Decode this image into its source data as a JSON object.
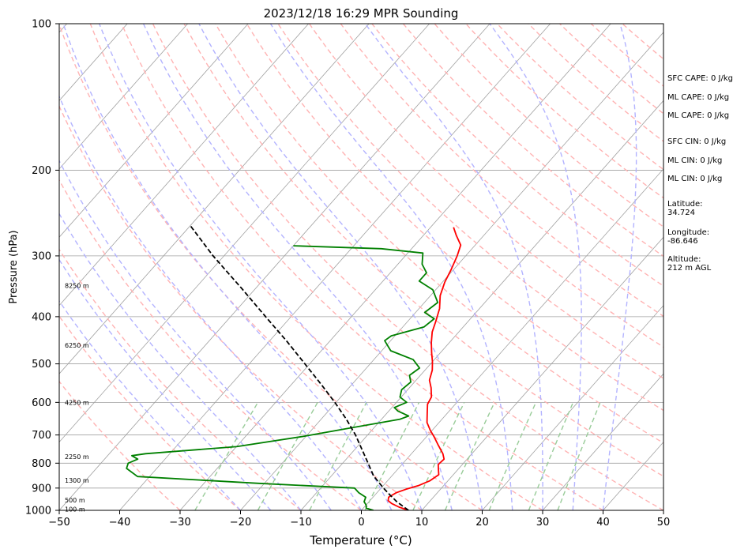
{
  "chart_data": {
    "type": "skew-t",
    "title": "2023/12/18 16:29 MPR Sounding",
    "xlabel": "Temperature (°C)",
    "ylabel": "Pressure (hPa)",
    "xlim": [
      -50,
      50
    ],
    "ylim_hpa": [
      1000,
      100
    ],
    "x_ticks": [
      -50,
      -40,
      -30,
      -20,
      -10,
      0,
      10,
      20,
      30,
      40,
      50
    ],
    "y_ticks": [
      100,
      200,
      300,
      400,
      500,
      600,
      700,
      800,
      900,
      1000
    ],
    "height_labels": [
      {
        "text": "8250 m",
        "p": 345
      },
      {
        "text": "6250 m",
        "p": 458
      },
      {
        "text": "4250 m",
        "p": 600
      },
      {
        "text": "2250 m",
        "p": 776
      },
      {
        "text": "1300 m",
        "p": 868
      },
      {
        "text": "500 m",
        "p": 953
      },
      {
        "text": "100 m",
        "p": 995
      }
    ],
    "series": [
      {
        "role": "temperature",
        "color": "#ff0000",
        "points": [
          {
            "p": 1000,
            "t": 7.8
          },
          {
            "p": 985,
            "t": 5.8
          },
          {
            "p": 968,
            "t": 4.0
          },
          {
            "p": 955,
            "t": 3.0
          },
          {
            "p": 940,
            "t": 2.6
          },
          {
            "p": 920,
            "t": 3.2
          },
          {
            "p": 905,
            "t": 4.3
          },
          {
            "p": 890,
            "t": 5.8
          },
          {
            "p": 870,
            "t": 7.0
          },
          {
            "p": 845,
            "t": 7.6
          },
          {
            "p": 825,
            "t": 6.8
          },
          {
            "p": 805,
            "t": 6.0
          },
          {
            "p": 785,
            "t": 6.2
          },
          {
            "p": 765,
            "t": 5.2
          },
          {
            "p": 735,
            "t": 3.2
          },
          {
            "p": 705,
            "t": 1.2
          },
          {
            "p": 685,
            "t": -0.3
          },
          {
            "p": 660,
            "t": -2.0
          },
          {
            "p": 630,
            "t": -3.4
          },
          {
            "p": 605,
            "t": -4.6
          },
          {
            "p": 585,
            "t": -5.0
          },
          {
            "p": 560,
            "t": -6.4
          },
          {
            "p": 540,
            "t": -7.8
          },
          {
            "p": 515,
            "t": -8.8
          },
          {
            "p": 495,
            "t": -10.0
          },
          {
            "p": 475,
            "t": -11.4
          },
          {
            "p": 452,
            "t": -13.0
          },
          {
            "p": 430,
            "t": -14.4
          },
          {
            "p": 410,
            "t": -15.3
          },
          {
            "p": 385,
            "t": -16.6
          },
          {
            "p": 362,
            "t": -18.4
          },
          {
            "p": 340,
            "t": -19.6
          },
          {
            "p": 320,
            "t": -20.4
          },
          {
            "p": 300,
            "t": -21.4
          },
          {
            "p": 285,
            "t": -22.4
          },
          {
            "p": 272,
            "t": -24.6
          },
          {
            "p": 262,
            "t": -26.2
          }
        ]
      },
      {
        "role": "dewpoint",
        "color": "#008000",
        "points": [
          {
            "p": 1000,
            "t": 2.0
          },
          {
            "p": 990,
            "t": 0.5
          },
          {
            "p": 975,
            "t": 0.0
          },
          {
            "p": 960,
            "t": -0.8
          },
          {
            "p": 940,
            "t": -1.2
          },
          {
            "p": 920,
            "t": -3.0
          },
          {
            "p": 900,
            "t": -4.4
          },
          {
            "p": 880,
            "t": -21.0
          },
          {
            "p": 852,
            "t": -42.0
          },
          {
            "p": 820,
            "t": -45.0
          },
          {
            "p": 800,
            "t": -45.5
          },
          {
            "p": 785,
            "t": -44.5
          },
          {
            "p": 772,
            "t": -46.0
          },
          {
            "p": 765,
            "t": -44.0
          },
          {
            "p": 740,
            "t": -30.0
          },
          {
            "p": 705,
            "t": -20.5
          },
          {
            "p": 680,
            "t": -14.5
          },
          {
            "p": 650,
            "t": -7.0
          },
          {
            "p": 640,
            "t": -6.0
          },
          {
            "p": 625,
            "t": -8.5
          },
          {
            "p": 615,
            "t": -9.6
          },
          {
            "p": 600,
            "t": -8.3
          },
          {
            "p": 585,
            "t": -10.2
          },
          {
            "p": 565,
            "t": -11.0
          },
          {
            "p": 545,
            "t": -10.6
          },
          {
            "p": 528,
            "t": -11.8
          },
          {
            "p": 510,
            "t": -11.2
          },
          {
            "p": 490,
            "t": -13.5
          },
          {
            "p": 470,
            "t": -18.5
          },
          {
            "p": 448,
            "t": -21.0
          },
          {
            "p": 438,
            "t": -20.6
          },
          {
            "p": 420,
            "t": -16.5
          },
          {
            "p": 404,
            "t": -16.0
          },
          {
            "p": 392,
            "t": -18.5
          },
          {
            "p": 374,
            "t": -17.8
          },
          {
            "p": 352,
            "t": -20.5
          },
          {
            "p": 338,
            "t": -24.0
          },
          {
            "p": 325,
            "t": -24.0
          },
          {
            "p": 312,
            "t": -26.0
          },
          {
            "p": 296,
            "t": -27.5
          },
          {
            "p": 290,
            "t": -35.0
          },
          {
            "p": 286,
            "t": -50.0
          }
        ]
      },
      {
        "role": "parcel",
        "color": "#000000",
        "points": [
          {
            "p": 1000,
            "t": 7.8
          },
          {
            "p": 960,
            "t": 4.6
          },
          {
            "p": 930,
            "t": 2.5
          },
          {
            "p": 900,
            "t": 0.4
          },
          {
            "p": 850,
            "t": -3.0
          },
          {
            "p": 800,
            "t": -5.8
          },
          {
            "p": 750,
            "t": -8.8
          },
          {
            "p": 700,
            "t": -12.0
          },
          {
            "p": 650,
            "t": -15.8
          },
          {
            "p": 600,
            "t": -20.2
          },
          {
            "p": 550,
            "t": -25.2
          },
          {
            "p": 500,
            "t": -30.8
          },
          {
            "p": 450,
            "t": -37.0
          },
          {
            "p": 400,
            "t": -44.2
          },
          {
            "p": 350,
            "t": -52.3
          },
          {
            "p": 300,
            "t": -61.8
          },
          {
            "p": 260,
            "t": -70.0
          }
        ]
      }
    ],
    "annotations": {
      "cape_cin": [
        "SFC CAPE: 0 J/kg",
        "ML CAPE: 0 J/kg",
        "ML CAPE: 0 J/kg",
        "SFC CIN: 0 J/kg",
        "ML CIN: 0 J/kg",
        "ML CIN: 0 J/kg"
      ],
      "location": [
        {
          "label": "Latitude:",
          "value": "34.724"
        },
        {
          "label": "Longitude:",
          "value": "-86.646"
        },
        {
          "label": "Altitude:",
          "value": "212 m AGL"
        }
      ]
    },
    "colors": {
      "dry_adiabat": "#ffb3b3",
      "moist_adiabat": "#b3b3ff",
      "mixing_ratio": "#99cc99",
      "isotherm": "#a0a0a0",
      "isobar": "#a0a0a0"
    }
  }
}
